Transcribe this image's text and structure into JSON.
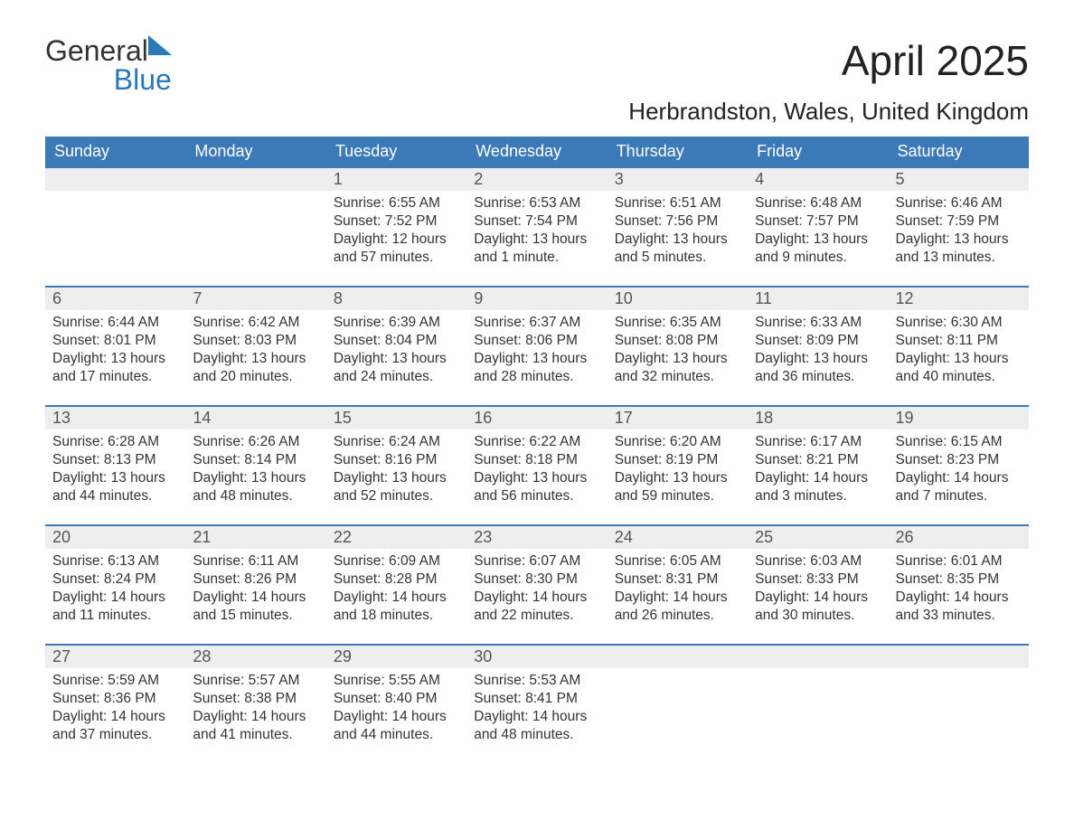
{
  "brand": {
    "text_general": "General",
    "text_blue": "Blue",
    "sail_color": "#2a7ab9"
  },
  "title": "April 2025",
  "location": "Herbrandston, Wales, United Kingdom",
  "colors": {
    "header_bg": "#3b79b7",
    "header_text": "#ffffff",
    "strip_bg": "#eeeeee",
    "body_text": "#333333",
    "rule": "#3b79b7",
    "background": "#ffffff"
  },
  "day_headers": [
    "Sunday",
    "Monday",
    "Tuesday",
    "Wednesday",
    "Thursday",
    "Friday",
    "Saturday"
  ],
  "weeks": [
    [
      {
        "day": "",
        "sunrise": "",
        "sunset": "",
        "daylight": ""
      },
      {
        "day": "",
        "sunrise": "",
        "sunset": "",
        "daylight": ""
      },
      {
        "day": "1",
        "sunrise": "Sunrise: 6:55 AM",
        "sunset": "Sunset: 7:52 PM",
        "daylight": "Daylight: 12 hours and 57 minutes."
      },
      {
        "day": "2",
        "sunrise": "Sunrise: 6:53 AM",
        "sunset": "Sunset: 7:54 PM",
        "daylight": "Daylight: 13 hours and 1 minute."
      },
      {
        "day": "3",
        "sunrise": "Sunrise: 6:51 AM",
        "sunset": "Sunset: 7:56 PM",
        "daylight": "Daylight: 13 hours and 5 minutes."
      },
      {
        "day": "4",
        "sunrise": "Sunrise: 6:48 AM",
        "sunset": "Sunset: 7:57 PM",
        "daylight": "Daylight: 13 hours and 9 minutes."
      },
      {
        "day": "5",
        "sunrise": "Sunrise: 6:46 AM",
        "sunset": "Sunset: 7:59 PM",
        "daylight": "Daylight: 13 hours and 13 minutes."
      }
    ],
    [
      {
        "day": "6",
        "sunrise": "Sunrise: 6:44 AM",
        "sunset": "Sunset: 8:01 PM",
        "daylight": "Daylight: 13 hours and 17 minutes."
      },
      {
        "day": "7",
        "sunrise": "Sunrise: 6:42 AM",
        "sunset": "Sunset: 8:03 PM",
        "daylight": "Daylight: 13 hours and 20 minutes."
      },
      {
        "day": "8",
        "sunrise": "Sunrise: 6:39 AM",
        "sunset": "Sunset: 8:04 PM",
        "daylight": "Daylight: 13 hours and 24 minutes."
      },
      {
        "day": "9",
        "sunrise": "Sunrise: 6:37 AM",
        "sunset": "Sunset: 8:06 PM",
        "daylight": "Daylight: 13 hours and 28 minutes."
      },
      {
        "day": "10",
        "sunrise": "Sunrise: 6:35 AM",
        "sunset": "Sunset: 8:08 PM",
        "daylight": "Daylight: 13 hours and 32 minutes."
      },
      {
        "day": "11",
        "sunrise": "Sunrise: 6:33 AM",
        "sunset": "Sunset: 8:09 PM",
        "daylight": "Daylight: 13 hours and 36 minutes."
      },
      {
        "day": "12",
        "sunrise": "Sunrise: 6:30 AM",
        "sunset": "Sunset: 8:11 PM",
        "daylight": "Daylight: 13 hours and 40 minutes."
      }
    ],
    [
      {
        "day": "13",
        "sunrise": "Sunrise: 6:28 AM",
        "sunset": "Sunset: 8:13 PM",
        "daylight": "Daylight: 13 hours and 44 minutes."
      },
      {
        "day": "14",
        "sunrise": "Sunrise: 6:26 AM",
        "sunset": "Sunset: 8:14 PM",
        "daylight": "Daylight: 13 hours and 48 minutes."
      },
      {
        "day": "15",
        "sunrise": "Sunrise: 6:24 AM",
        "sunset": "Sunset: 8:16 PM",
        "daylight": "Daylight: 13 hours and 52 minutes."
      },
      {
        "day": "16",
        "sunrise": "Sunrise: 6:22 AM",
        "sunset": "Sunset: 8:18 PM",
        "daylight": "Daylight: 13 hours and 56 minutes."
      },
      {
        "day": "17",
        "sunrise": "Sunrise: 6:20 AM",
        "sunset": "Sunset: 8:19 PM",
        "daylight": "Daylight: 13 hours and 59 minutes."
      },
      {
        "day": "18",
        "sunrise": "Sunrise: 6:17 AM",
        "sunset": "Sunset: 8:21 PM",
        "daylight": "Daylight: 14 hours and 3 minutes."
      },
      {
        "day": "19",
        "sunrise": "Sunrise: 6:15 AM",
        "sunset": "Sunset: 8:23 PM",
        "daylight": "Daylight: 14 hours and 7 minutes."
      }
    ],
    [
      {
        "day": "20",
        "sunrise": "Sunrise: 6:13 AM",
        "sunset": "Sunset: 8:24 PM",
        "daylight": "Daylight: 14 hours and 11 minutes."
      },
      {
        "day": "21",
        "sunrise": "Sunrise: 6:11 AM",
        "sunset": "Sunset: 8:26 PM",
        "daylight": "Daylight: 14 hours and 15 minutes."
      },
      {
        "day": "22",
        "sunrise": "Sunrise: 6:09 AM",
        "sunset": "Sunset: 8:28 PM",
        "daylight": "Daylight: 14 hours and 18 minutes."
      },
      {
        "day": "23",
        "sunrise": "Sunrise: 6:07 AM",
        "sunset": "Sunset: 8:30 PM",
        "daylight": "Daylight: 14 hours and 22 minutes."
      },
      {
        "day": "24",
        "sunrise": "Sunrise: 6:05 AM",
        "sunset": "Sunset: 8:31 PM",
        "daylight": "Daylight: 14 hours and 26 minutes."
      },
      {
        "day": "25",
        "sunrise": "Sunrise: 6:03 AM",
        "sunset": "Sunset: 8:33 PM",
        "daylight": "Daylight: 14 hours and 30 minutes."
      },
      {
        "day": "26",
        "sunrise": "Sunrise: 6:01 AM",
        "sunset": "Sunset: 8:35 PM",
        "daylight": "Daylight: 14 hours and 33 minutes."
      }
    ],
    [
      {
        "day": "27",
        "sunrise": "Sunrise: 5:59 AM",
        "sunset": "Sunset: 8:36 PM",
        "daylight": "Daylight: 14 hours and 37 minutes."
      },
      {
        "day": "28",
        "sunrise": "Sunrise: 5:57 AM",
        "sunset": "Sunset: 8:38 PM",
        "daylight": "Daylight: 14 hours and 41 minutes."
      },
      {
        "day": "29",
        "sunrise": "Sunrise: 5:55 AM",
        "sunset": "Sunset: 8:40 PM",
        "daylight": "Daylight: 14 hours and 44 minutes."
      },
      {
        "day": "30",
        "sunrise": "Sunrise: 5:53 AM",
        "sunset": "Sunset: 8:41 PM",
        "daylight": "Daylight: 14 hours and 48 minutes."
      },
      {
        "day": "",
        "sunrise": "",
        "sunset": "",
        "daylight": ""
      },
      {
        "day": "",
        "sunrise": "",
        "sunset": "",
        "daylight": ""
      },
      {
        "day": "",
        "sunrise": "",
        "sunset": "",
        "daylight": ""
      }
    ]
  ]
}
